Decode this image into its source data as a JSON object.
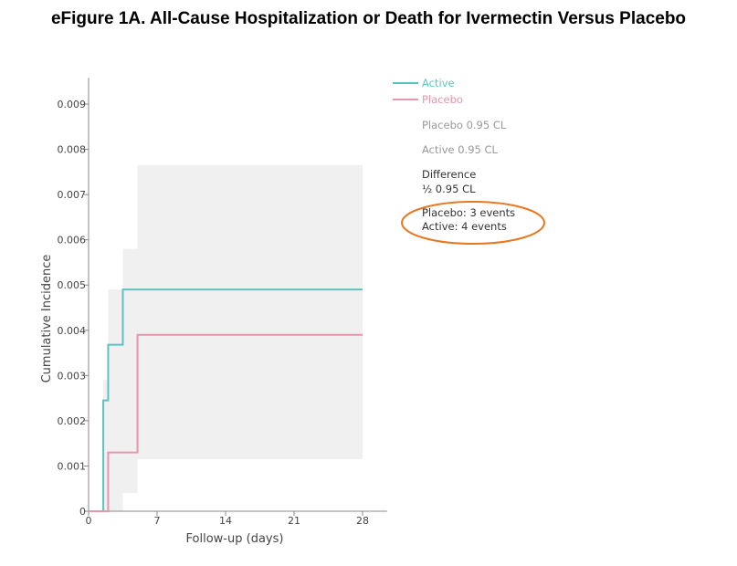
{
  "title": "eFigure 1A. All-Cause Hospitalization or Death for Ivermectin Versus Placebo",
  "chart_data": {
    "type": "line",
    "xlabel": "Follow-up (days)",
    "ylabel": "Cumulative Incidence",
    "xlim": [
      0,
      29
    ],
    "ylim": [
      0,
      0.0095
    ],
    "x_ticks": [
      0,
      7,
      14,
      21,
      28
    ],
    "x_tick_labels": [
      "0",
      "7",
      "14",
      "21",
      "28"
    ],
    "y_ticks": [
      0,
      0.001,
      0.002,
      0.003,
      0.004,
      0.005,
      0.006,
      0.007,
      0.008,
      0.009
    ],
    "y_tick_labels": [
      "0",
      "0.001",
      "0.002",
      "0.003",
      "0.004",
      "0.005",
      "0.006",
      "0.007",
      "0.008",
      "0.009"
    ],
    "grid": false,
    "legend_position": "right",
    "series": [
      {
        "name": "Active",
        "color": "#5cc4bf",
        "x": [
          0,
          1.5,
          1.5,
          2,
          2,
          3.5,
          3.5,
          28
        ],
        "y": [
          0,
          0,
          0.00245,
          0.00245,
          0.00368,
          0.00368,
          0.0049,
          0.0049
        ]
      },
      {
        "name": "Placebo",
        "color": "#e896ab",
        "x": [
          0,
          2,
          2,
          5,
          5,
          28
        ],
        "y": [
          0,
          0,
          0.0013,
          0.0013,
          0.0039,
          0.0039
        ]
      }
    ],
    "confidence_band": {
      "color": "#f0f0f0",
      "x": [
        1.5,
        2,
        3.5,
        5,
        28
      ],
      "upper": [
        0.0029,
        0.0049,
        0.0058,
        0.00765,
        0.00765
      ],
      "lower": [
        0,
        0,
        0.0004,
        0.00115,
        0.00115
      ]
    },
    "legend_entries": [
      {
        "text": "Active",
        "type": "line",
        "color": "#5cc4bf"
      },
      {
        "text": "Placebo",
        "type": "line",
        "color": "#e896ab"
      },
      {
        "text": "Placebo 0.95 CL",
        "type": "text",
        "color": "#999999"
      },
      {
        "text": "Active 0.95 CL",
        "type": "text",
        "color": "#999999"
      },
      {
        "text": "Difference",
        "type": "text",
        "color": "#333333"
      },
      {
        "text": "½ 0.95 CL",
        "type": "text",
        "color": "#333333"
      },
      {
        "text": "Placebo: 3 events",
        "type": "text",
        "color": "#333333"
      },
      {
        "text": "Active: 4 events",
        "type": "text",
        "color": "#333333"
      }
    ],
    "annotation_color": "#e8771f"
  }
}
